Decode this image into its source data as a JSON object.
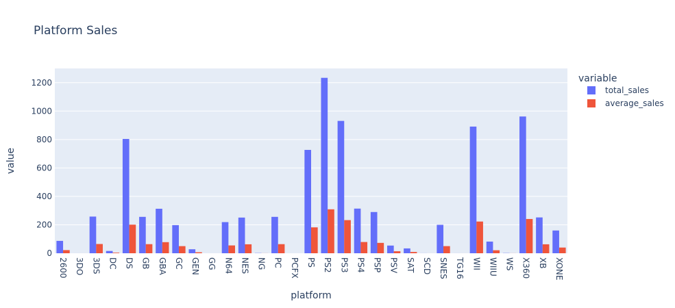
{
  "chart_data": {
    "type": "bar",
    "title": "Platform Sales",
    "xlabel": "platform",
    "ylabel": "value",
    "ylim": [
      0,
      1300
    ],
    "yticks": [
      0,
      200,
      400,
      600,
      800,
      1000,
      1200
    ],
    "grid": true,
    "legend_position": "top-right",
    "legend_title": "variable",
    "categories": [
      "2600",
      "3DO",
      "3DS",
      "DC",
      "DS",
      "GB",
      "GBA",
      "GC",
      "GEN",
      "GG",
      "N64",
      "NES",
      "NG",
      "PC",
      "PCFX",
      "PS",
      "PS2",
      "PS3",
      "PS4",
      "PSP",
      "PSV",
      "SAT",
      "SCD",
      "SNES",
      "TG16",
      "WII",
      "WIIU",
      "WS",
      "X360",
      "XB",
      "XONE"
    ],
    "series": [
      {
        "name": "total_sales",
        "color": "#636efa",
        "values": [
          87,
          0.1,
          258,
          16,
          804,
          256,
          313,
          198,
          28,
          0.04,
          219,
          251,
          1.4,
          256,
          0.03,
          727,
          1234,
          931,
          314,
          290,
          54,
          34,
          0.36,
          200,
          0.16,
          891,
          82,
          1.4,
          962,
          252,
          160
        ]
      },
      {
        "name": "average_sales",
        "color": "#ef553b",
        "values": [
          22,
          0.03,
          65,
          4,
          201,
          64,
          78,
          50,
          7,
          0.01,
          55,
          63,
          0.35,
          64,
          0.01,
          182,
          309,
          233,
          79,
          73,
          14,
          9,
          0.09,
          50,
          0.04,
          223,
          21,
          0.35,
          241,
          63,
          40
        ]
      }
    ]
  }
}
